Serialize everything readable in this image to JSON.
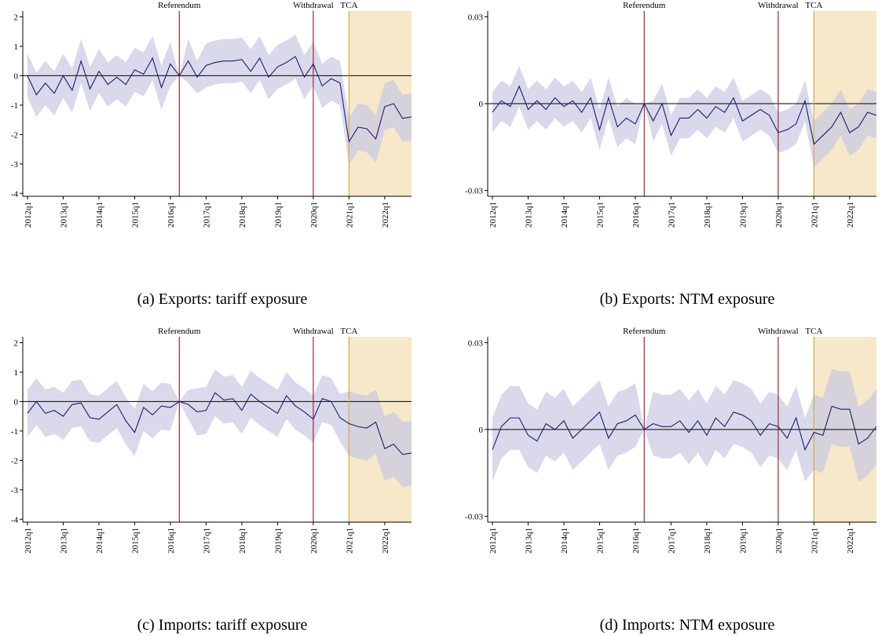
{
  "chart_data": [
    {
      "type": "line",
      "caption": "(a) Exports: tariff exposure",
      "categories": [
        "2012q1",
        null,
        null,
        null,
        "2013q1",
        null,
        null,
        null,
        "2014q1",
        null,
        null,
        null,
        "2015q1",
        null,
        null,
        null,
        "2016q1",
        null,
        null,
        null,
        "2017q1",
        null,
        null,
        null,
        "2018q1",
        null,
        null,
        null,
        "2019q1",
        null,
        null,
        null,
        "2020q1",
        null,
        null,
        null,
        "2021q1",
        null,
        null,
        null,
        "2022q1",
        null,
        null,
        null
      ],
      "values": [
        0,
        -0.65,
        -0.25,
        -0.6,
        0,
        -0.5,
        0.5,
        -0.45,
        0.15,
        -0.3,
        -0.05,
        -0.3,
        0.2,
        0.05,
        0.6,
        -0.4,
        0.4,
        0,
        0.5,
        -0.05,
        0.35,
        0.45,
        0.5,
        0.5,
        0.55,
        0.15,
        0.6,
        -0.05,
        0.3,
        0.45,
        0.65,
        -0.05,
        0.4,
        -0.35,
        -0.1,
        -0.25,
        -2.25,
        -1.75,
        -1.8,
        -2.15,
        -1.05,
        -0.95,
        -1.45,
        -1.4
      ],
      "lower": [
        -0.75,
        -1.4,
        -1,
        -1.35,
        -0.75,
        -1.25,
        -0.25,
        -1.2,
        -0.6,
        -1.05,
        -0.8,
        -1.05,
        -0.55,
        -0.7,
        -0.15,
        -1.15,
        -0.35,
        0,
        -0.25,
        -0.6,
        -0.4,
        -0.3,
        -0.25,
        -0.25,
        -0.2,
        -0.6,
        -0.15,
        -0.8,
        -0.45,
        -0.3,
        -0.1,
        -0.8,
        -0.35,
        -1.1,
        -0.85,
        -1,
        -3.05,
        -2.55,
        -2.6,
        -2.95,
        -1.85,
        -1.75,
        -2.25,
        -2.2
      ],
      "upper": [
        0.75,
        0.1,
        0.5,
        0.15,
        0.75,
        0.25,
        1.25,
        0.3,
        0.9,
        0.45,
        0.7,
        0.45,
        0.95,
        0.8,
        1.35,
        0.35,
        1.15,
        0,
        1.25,
        0.5,
        1.1,
        1.2,
        1.25,
        1.25,
        1.3,
        0.9,
        1.35,
        0.7,
        1.05,
        1.2,
        1.4,
        0.7,
        1.15,
        0.4,
        0.65,
        0.5,
        -1.45,
        -0.95,
        -1,
        -1.35,
        -0.25,
        -0.15,
        -0.65,
        -0.6
      ],
      "ylim": [
        -4.1,
        2.2
      ],
      "yticks": [
        -4,
        -3,
        -2,
        -1,
        0,
        1,
        2
      ],
      "line_color": "#1c1c6b",
      "band_color": "#c9c9e2",
      "zero_line": true,
      "events": [
        {
          "label": "Referendum",
          "x": 17,
          "color": "#a3282f"
        },
        {
          "label": "Withdrawal",
          "x": 32,
          "color": "#a3282f"
        },
        {
          "label": "TCA",
          "x": 36,
          "color": "#d6a946",
          "shade": "#f6e8c8"
        }
      ]
    },
    {
      "type": "line",
      "caption": "(b) Exports: NTM exposure",
      "categories": [
        "2012q1",
        null,
        null,
        null,
        "2013q1",
        null,
        null,
        null,
        "2014q1",
        null,
        null,
        null,
        "2015q1",
        null,
        null,
        null,
        "2016q1",
        null,
        null,
        null,
        "2017q1",
        null,
        null,
        null,
        "2018q1",
        null,
        null,
        null,
        "2019q1",
        null,
        null,
        null,
        "2020q1",
        null,
        null,
        null,
        "2021q1",
        null,
        null,
        null,
        "2022q1",
        null,
        null,
        null
      ],
      "values": [
        -0.003,
        0.001,
        -0.001,
        0.006,
        -0.002,
        0.001,
        -0.002,
        0.002,
        -0.001,
        0.001,
        -0.003,
        0.002,
        -0.009,
        0.002,
        -0.008,
        -0.005,
        -0.007,
        0,
        -0.006,
        0,
        -0.011,
        -0.005,
        -0.005,
        -0.002,
        -0.005,
        -0.001,
        -0.003,
        0.002,
        -0.006,
        -0.004,
        -0.002,
        -0.004,
        -0.01,
        -0.009,
        -0.007,
        0.001,
        -0.014,
        -0.011,
        -0.008,
        -0.003,
        -0.01,
        -0.008,
        -0.003,
        -0.004
      ],
      "lower": [
        -0.01,
        -0.006,
        -0.008,
        -0.001,
        -0.009,
        -0.006,
        -0.009,
        -0.005,
        -0.008,
        -0.006,
        -0.01,
        -0.005,
        -0.016,
        -0.005,
        -0.015,
        -0.012,
        -0.014,
        0,
        -0.013,
        -0.007,
        -0.018,
        -0.012,
        -0.012,
        -0.009,
        -0.012,
        -0.008,
        -0.01,
        -0.005,
        -0.013,
        -0.011,
        -0.009,
        -0.011,
        -0.017,
        -0.016,
        -0.014,
        -0.006,
        -0.022,
        -0.019,
        -0.016,
        -0.011,
        -0.018,
        -0.016,
        -0.011,
        -0.012
      ],
      "upper": [
        0.004,
        0.008,
        0.006,
        0.013,
        0.005,
        0.008,
        0.005,
        0.009,
        0.006,
        0.008,
        0.004,
        0.009,
        -0.002,
        0.009,
        -0.001,
        0.002,
        0,
        0,
        0.001,
        0.007,
        -0.004,
        0.002,
        0.002,
        0.005,
        0.002,
        0.006,
        0.004,
        0.009,
        0.001,
        0.003,
        0.005,
        0.003,
        -0.003,
        -0.002,
        0,
        0.008,
        -0.006,
        -0.003,
        0,
        0.005,
        -0.002,
        0,
        0.005,
        0.004
      ],
      "ylim": [
        -0.032,
        0.032
      ],
      "yticks": [
        -0.03,
        0,
        0.03
      ],
      "line_color": "#1c1c6b",
      "band_color": "#c9c9e2",
      "zero_line": true,
      "events": [
        {
          "label": "Referendum",
          "x": 17,
          "color": "#a3282f"
        },
        {
          "label": "Withdrawal",
          "x": 32,
          "color": "#a3282f"
        },
        {
          "label": "TCA",
          "x": 36,
          "color": "#d6a946",
          "shade": "#f6e8c8"
        }
      ]
    },
    {
      "type": "line",
      "caption": "(c) Imports: tariff exposure",
      "categories": [
        "2012q1",
        null,
        null,
        null,
        "2013q1",
        null,
        null,
        null,
        "2014q1",
        null,
        null,
        null,
        "2015q1",
        null,
        null,
        null,
        "2016q1",
        null,
        null,
        null,
        "2017q1",
        null,
        null,
        null,
        "2018q1",
        null,
        null,
        null,
        "2019q1",
        null,
        null,
        null,
        "2020q1",
        null,
        null,
        null,
        "2021q1",
        null,
        null,
        null,
        "2022q1",
        null,
        null,
        null
      ],
      "values": [
        -0.4,
        0,
        -0.4,
        -0.3,
        -0.5,
        -0.1,
        -0.05,
        -0.55,
        -0.6,
        -0.35,
        -0.1,
        -0.65,
        -1.05,
        -0.2,
        -0.45,
        -0.15,
        -0.2,
        0,
        -0.1,
        -0.35,
        -0.3,
        0.3,
        0.05,
        0.1,
        -0.3,
        0.25,
        0,
        -0.2,
        -0.4,
        0.2,
        -0.15,
        -0.35,
        -0.6,
        0.1,
        0,
        -0.55,
        -0.75,
        -0.85,
        -0.9,
        -0.7,
        -1.6,
        -1.45,
        -1.8,
        -1.75
      ],
      "lower": [
        -1.2,
        -0.8,
        -1.2,
        -1.1,
        -1.3,
        -0.9,
        -0.85,
        -1.35,
        -1.4,
        -1.15,
        -0.9,
        -1.45,
        -1.85,
        -1,
        -1.25,
        -0.95,
        -1,
        0,
        -0.6,
        -1.15,
        -1.1,
        -0.5,
        -0.75,
        -0.7,
        -1.1,
        -0.55,
        -0.8,
        -1,
        -1.2,
        -0.6,
        -0.95,
        -1.15,
        -1.4,
        -0.7,
        -0.8,
        -1.35,
        -1.85,
        -1.95,
        -2,
        -1.8,
        -2.7,
        -2.55,
        -2.9,
        -2.85
      ],
      "upper": [
        0.4,
        0.8,
        0.4,
        0.5,
        0.3,
        0.7,
        0.75,
        0.25,
        0.2,
        0.45,
        0.7,
        0.15,
        -0.25,
        0.6,
        0.35,
        0.65,
        0.6,
        0,
        0.4,
        0.45,
        0.5,
        1.1,
        0.85,
        0.9,
        0.5,
        1.05,
        0.8,
        0.6,
        0.4,
        1,
        0.65,
        0.45,
        0.2,
        0.9,
        0.8,
        0.25,
        0.35,
        0.25,
        0.2,
        0.4,
        -0.5,
        -0.35,
        -0.7,
        -0.65
      ],
      "ylim": [
        -4.1,
        2.2
      ],
      "yticks": [
        -4,
        -3,
        -2,
        -1,
        0,
        1,
        2
      ],
      "line_color": "#1c1c6b",
      "band_color": "#c9c9e2",
      "zero_line": true,
      "events": [
        {
          "label": "Referendum",
          "x": 17,
          "color": "#a3282f"
        },
        {
          "label": "Withdrawal",
          "x": 32,
          "color": "#a3282f"
        },
        {
          "label": "TCA",
          "x": 36,
          "color": "#d6a946",
          "shade": "#f6e8c8"
        }
      ]
    },
    {
      "type": "line",
      "caption": "(d) Imports: NTM exposure",
      "categories": [
        "2012q1",
        null,
        null,
        null,
        "2013q1",
        null,
        null,
        null,
        "2014q1",
        null,
        null,
        null,
        "2015q1",
        null,
        null,
        null,
        "2016q1",
        null,
        null,
        null,
        "2017q1",
        null,
        null,
        null,
        "2018q1",
        null,
        null,
        null,
        "2019q1",
        null,
        null,
        null,
        "2020q1",
        null,
        null,
        null,
        "2021q1",
        null,
        null,
        null,
        "2022q1",
        null,
        null,
        null
      ],
      "values": [
        -0.007,
        0.001,
        0.004,
        0.004,
        -0.002,
        -0.004,
        0.002,
        0,
        0.003,
        -0.003,
        0,
        0.003,
        0.006,
        -0.003,
        0.002,
        0.003,
        0.005,
        0,
        0.002,
        0.001,
        0.001,
        0.003,
        -0.001,
        0.003,
        -0.002,
        0.004,
        0.001,
        0.006,
        0.005,
        0.003,
        -0.002,
        0.002,
        0.001,
        -0.003,
        0.004,
        -0.007,
        -0.001,
        -0.002,
        0.008,
        0.007,
        0.007,
        -0.005,
        -0.003,
        0.001
      ],
      "lower": [
        -0.018,
        -0.01,
        -0.007,
        -0.007,
        -0.013,
        -0.015,
        -0.009,
        -0.011,
        -0.008,
        -0.014,
        -0.011,
        -0.008,
        -0.005,
        -0.014,
        -0.009,
        -0.008,
        -0.006,
        0,
        -0.009,
        -0.01,
        -0.01,
        -0.008,
        -0.012,
        -0.008,
        -0.013,
        -0.007,
        -0.01,
        -0.005,
        -0.006,
        -0.008,
        -0.013,
        -0.009,
        -0.01,
        -0.014,
        -0.007,
        -0.018,
        -0.014,
        -0.015,
        -0.005,
        -0.006,
        -0.006,
        -0.018,
        -0.016,
        -0.012
      ],
      "upper": [
        0.004,
        0.012,
        0.015,
        0.015,
        0.009,
        0.007,
        0.013,
        0.011,
        0.014,
        0.008,
        0.011,
        0.014,
        0.017,
        0.008,
        0.013,
        0.014,
        0.016,
        0,
        0.013,
        0.012,
        0.012,
        0.014,
        0.01,
        0.014,
        0.009,
        0.015,
        0.012,
        0.017,
        0.016,
        0.014,
        0.009,
        0.013,
        0.012,
        0.008,
        0.015,
        0.004,
        0.012,
        0.011,
        0.021,
        0.02,
        0.02,
        0.008,
        0.01,
        0.014
      ],
      "ylim": [
        -0.032,
        0.032
      ],
      "yticks": [
        -0.03,
        0,
        0.03
      ],
      "line_color": "#1c1c6b",
      "band_color": "#c9c9e2",
      "zero_line": true,
      "events": [
        {
          "label": "Referendum",
          "x": 17,
          "color": "#a3282f"
        },
        {
          "label": "Withdrawal",
          "x": 32,
          "color": "#a3282f"
        },
        {
          "label": "TCA",
          "x": 36,
          "color": "#d6a946",
          "shade": "#f6e8c8"
        }
      ]
    }
  ]
}
